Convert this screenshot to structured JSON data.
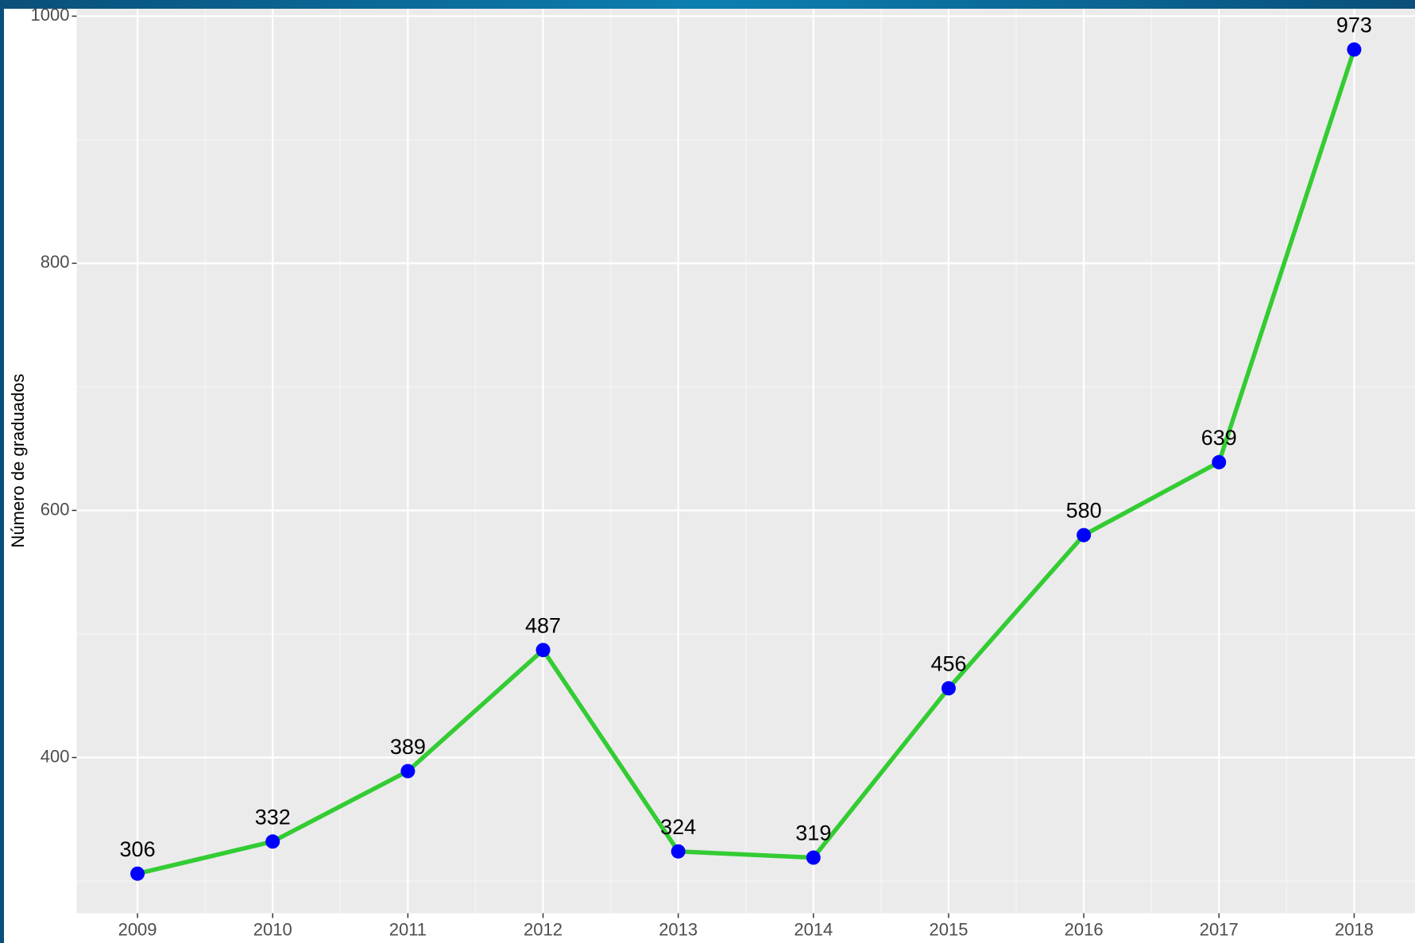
{
  "chart_data": {
    "type": "line",
    "y_label": "Número de graduados",
    "x": [
      2009,
      2010,
      2011,
      2012,
      2013,
      2014,
      2015,
      2016,
      2017,
      2018
    ],
    "values": [
      306,
      332,
      389,
      487,
      324,
      319,
      456,
      580,
      639,
      973
    ],
    "color": "#33cc33",
    "marker_color": "#0000ff",
    "xlim": [
      2008.55,
      2018.45
    ],
    "xticks": [
      2009,
      2010,
      2011,
      2012,
      2013,
      2014,
      2015,
      2016,
      2017,
      2018
    ],
    "ylim": [
      274,
      1006
    ],
    "yticks": [
      400,
      600,
      800,
      1000
    ],
    "grid": true
  }
}
